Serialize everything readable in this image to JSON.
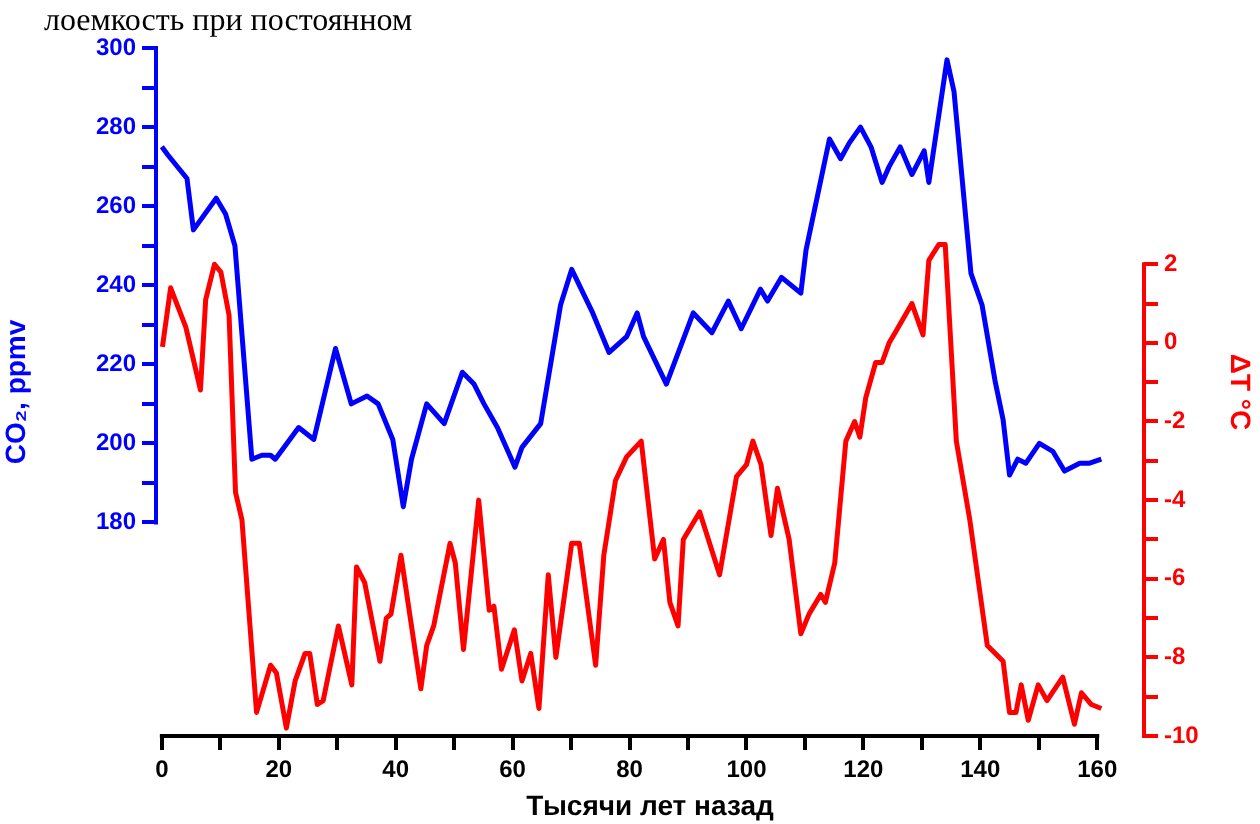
{
  "chart_data": {
    "type": "line",
    "title": "лоемкость при постоянном",
    "xlabel": "Тысячи лет назад",
    "ylabel": "CO₂, ppmv",
    "y2label": "ΔT °C",
    "xlim": [
      -1,
      168
    ],
    "xticks": [
      0,
      {
        "value": 10,
        "label": null
      },
      20,
      {
        "value": 30,
        "label": null
      },
      40,
      {
        "value": 50,
        "label": null
      },
      60,
      {
        "value": 70,
        "label": null
      },
      80,
      {
        "value": 90,
        "label": null
      },
      100,
      {
        "value": 110,
        "label": null
      },
      120,
      {
        "value": 130,
        "label": null
      },
      140,
      {
        "value": 150,
        "label": null
      },
      160
    ],
    "ylim": [
      126,
      300
    ],
    "yticks": [
      180,
      {
        "value": 190,
        "label": null
      },
      200,
      {
        "value": 210,
        "label": null
      },
      220,
      {
        "value": 230,
        "label": null
      },
      240,
      {
        "value": 250,
        "label": null
      },
      260,
      {
        "value": 270,
        "label": null
      },
      280,
      {
        "value": 290,
        "label": null
      },
      300
    ],
    "y2lim": [
      -10,
      7.5
    ],
    "y2ticks": [
      -10,
      {
        "value": -9,
        "label": null
      },
      -8,
      {
        "value": -7,
        "label": null
      },
      -6,
      {
        "value": -5,
        "label": null
      },
      -4,
      {
        "value": -3,
        "label": null
      },
      -2,
      {
        "value": -1,
        "label": null
      },
      0,
      {
        "value": 1,
        "label": null
      },
      2
    ],
    "series": [
      {
        "color": "#0000ff",
        "x": [
          0,
          1,
          4.3,
          5.4,
          9.3,
          10.9,
          12.5,
          15.4,
          17.1,
          18.6,
          19.4,
          23.4,
          26,
          29.7,
          32.4,
          35.1,
          37,
          39.5,
          41.3,
          42.7,
          45.3,
          48.3,
          51.4,
          53.4,
          55.1,
          57.4,
          60.4,
          61.6,
          64.8,
          68.2,
          70.1,
          73.7,
          76.5,
          79.5,
          81.3,
          82.4,
          86.3,
          90.9,
          94.1,
          96.9,
          99.1,
          102.4,
          103.6,
          106,
          109.3,
          110.2,
          114.2,
          116.1,
          117.6,
          119.5,
          121.3,
          123.2,
          124.4,
          126.3,
          128.3,
          130.4,
          131.2,
          134.3,
          135.5,
          138.4,
          140.3,
          142.5,
          143.9,
          145,
          146.4,
          147.8,
          150.1,
          152.4,
          154.4,
          157,
          158.7,
          160.7
        ],
        "values": [
          275,
          273,
          267,
          254,
          262,
          258,
          250,
          196,
          197,
          197,
          196,
          204,
          201,
          224,
          210,
          212,
          210,
          201,
          184,
          196,
          210,
          205,
          218,
          215,
          210,
          204,
          194,
          199,
          205,
          235,
          244,
          233,
          223,
          227,
          233,
          227,
          215,
          233,
          228,
          236,
          229,
          239,
          236,
          242,
          238,
          249,
          277,
          272,
          276,
          280,
          275,
          266,
          270,
          275,
          268,
          274,
          266,
          297,
          289,
          243,
          235,
          216,
          206,
          192,
          196,
          195,
          200,
          198,
          193,
          195,
          195,
          196
        ]
      },
      {
        "color": "#ff0000",
        "axis": "y2",
        "x": [
          0.1,
          1.5,
          4.1,
          5.2,
          6.6,
          7.5,
          9,
          10.1,
          11.5,
          12.6,
          13.7,
          16.2,
          18.6,
          19.6,
          21.3,
          22.8,
          24.5,
          25.3,
          26.6,
          27.6,
          30.2,
          32.5,
          33.3,
          34.7,
          37.3,
          38.4,
          39.2,
          40.9,
          44.3,
          45.3,
          46.5,
          49.3,
          50.2,
          51.6,
          54.2,
          56,
          56.8,
          58.1,
          60.3,
          61.6,
          63.1,
          64.5,
          66.1,
          67.4,
          70.1,
          71.4,
          74.2,
          75.6,
          77.6,
          79.5,
          82,
          84.3,
          85.8,
          86.9,
          88.3,
          89.2,
          92,
          95.4,
          98.3,
          100,
          101.1,
          102.5,
          104.2,
          105.3,
          107.3,
          109.3,
          110.7,
          112.7,
          113.5,
          115.1,
          117,
          118.5,
          119.4,
          120.4,
          122.1,
          123.2,
          124.4,
          125.6,
          128.3,
          130.2,
          131.2,
          132.9,
          134,
          135.9,
          138.2,
          141.2,
          143.9,
          145,
          146.1,
          147,
          148.2,
          149.9,
          151.4,
          154.1,
          156.1,
          157.3,
          159,
          160.7
        ],
        "values": [
          -0.1,
          1.4,
          0.4,
          -0.3,
          -1.2,
          1.1,
          2.0,
          1.8,
          0.7,
          -3.8,
          -4.5,
          -9.4,
          -8.2,
          -8.4,
          -9.8,
          -8.6,
          -7.9,
          -7.9,
          -9.2,
          -9.1,
          -7.2,
          -8.7,
          -5.7,
          -6.1,
          -8.1,
          -7.0,
          -6.9,
          -5.4,
          -8.8,
          -7.7,
          -7.2,
          -5.1,
          -5.6,
          -7.8,
          -4.0,
          -6.8,
          -6.7,
          -8.3,
          -7.3,
          -8.6,
          -7.9,
          -9.3,
          -5.9,
          -8.0,
          -5.1,
          -5.1,
          -8.2,
          -5.4,
          -3.5,
          -2.9,
          -2.5,
          -5.5,
          -5.0,
          -6.6,
          -7.2,
          -5.0,
          -4.3,
          -5.9,
          -3.4,
          -3.1,
          -2.5,
          -3.1,
          -4.9,
          -3.7,
          -5.0,
          -7.4,
          -6.9,
          -6.4,
          -6.6,
          -5.6,
          -2.5,
          -2.0,
          -2.4,
          -1.4,
          -0.5,
          -0.5,
          0.0,
          0.3,
          1.0,
          0.2,
          2.1,
          2.5,
          2.5,
          -2.5,
          -4.5,
          -7.7,
          -8.1,
          -9.4,
          -9.4,
          -8.7,
          -9.6,
          -8.7,
          -9.1,
          -8.5,
          -9.7,
          -8.9,
          -9.2,
          -9.3
        ]
      }
    ]
  }
}
